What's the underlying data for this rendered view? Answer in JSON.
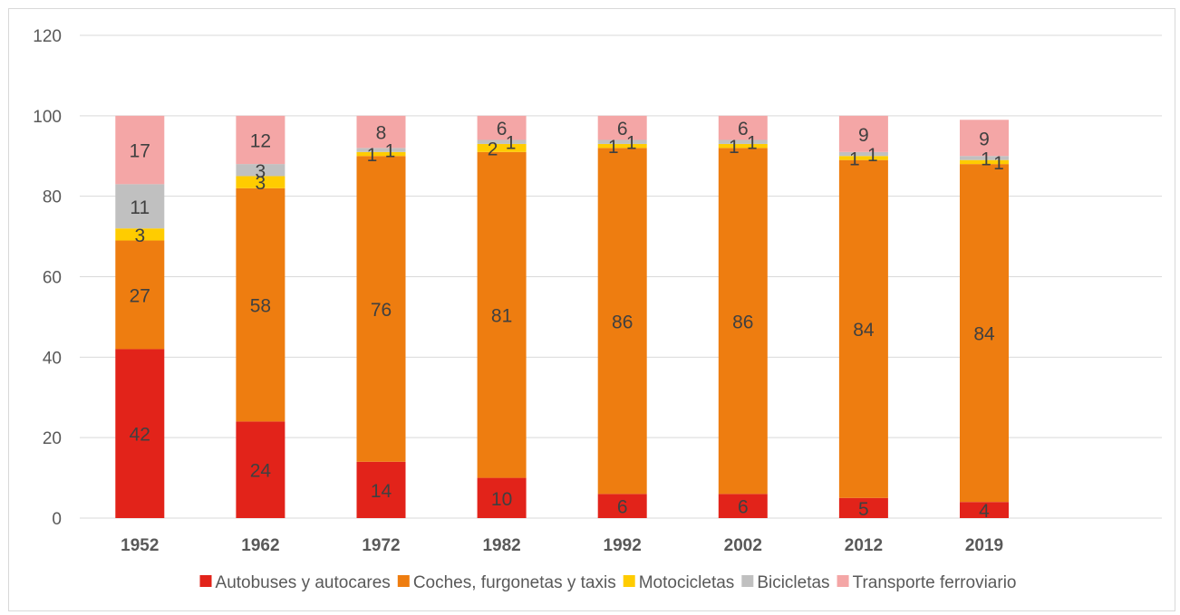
{
  "chart_data": {
    "type": "bar",
    "stacked": true,
    "categories": [
      "1952",
      "1962",
      "1972",
      "1982",
      "1992",
      "2002",
      "2012",
      "2019"
    ],
    "series": [
      {
        "name": "Autobuses y autocares",
        "color": "#e2231a",
        "values": [
          42,
          24,
          14,
          10,
          6,
          6,
          5,
          4
        ]
      },
      {
        "name": "Coches, furgonetas y taxis",
        "color": "#ee7d10",
        "values": [
          27,
          58,
          76,
          81,
          86,
          86,
          84,
          84
        ]
      },
      {
        "name": "Motocicletas",
        "color": "#ffcc00",
        "values": [
          3,
          3,
          1,
          2,
          1,
          1,
          1,
          1
        ]
      },
      {
        "name": "Bicicletas",
        "color": "#c0c0c0",
        "values": [
          11,
          3,
          1,
          1,
          1,
          1,
          1,
          1
        ]
      },
      {
        "name": "Transporte ferroviario",
        "color": "#f4a6a6",
        "values": [
          17,
          12,
          8,
          6,
          6,
          6,
          9,
          9
        ]
      }
    ],
    "ylim": [
      0,
      120
    ],
    "yticks": [
      "0",
      "20",
      "40",
      "60",
      "80",
      "100",
      "120"
    ],
    "grid": true,
    "legend": "bottom",
    "xlabel": "",
    "ylabel": "",
    "title": ""
  }
}
